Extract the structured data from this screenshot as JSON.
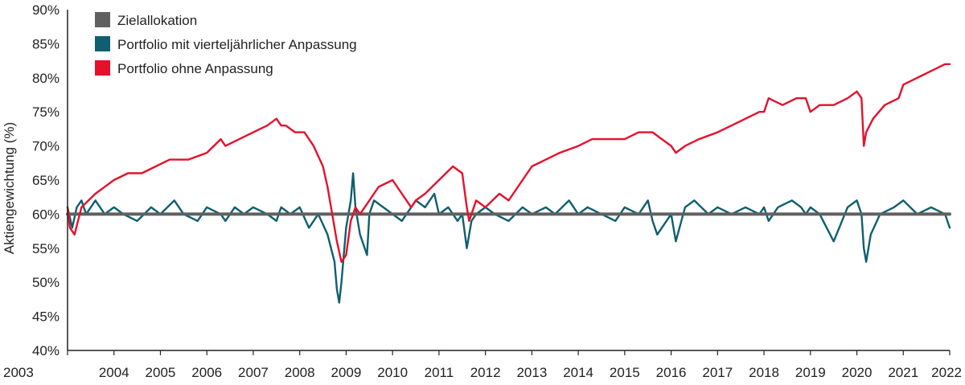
{
  "chart_data": {
    "type": "line",
    "title": "",
    "xlabel": "",
    "ylabel": "Aktiengewichtung (%)",
    "xlim": [
      2003,
      2022
    ],
    "ylim": [
      40,
      90
    ],
    "y_ticks": [
      40,
      45,
      50,
      55,
      60,
      65,
      70,
      75,
      80,
      85,
      90
    ],
    "y_tick_labels": [
      "40%",
      "45%",
      "50%",
      "55%",
      "60%",
      "65%",
      "70%",
      "75%",
      "80%",
      "85%",
      "90%"
    ],
    "x_ticks": [
      2003,
      2004,
      2005,
      2006,
      2007,
      2008,
      2009,
      2010,
      2011,
      2012,
      2013,
      2014,
      2015,
      2016,
      2017,
      2018,
      2019,
      2020,
      2021,
      2022
    ],
    "x_tick_labels": [
      "2003",
      "2004",
      "2005",
      "2006",
      "2007",
      "2008",
      "2009",
      "2010",
      "2011",
      "2012",
      "2013",
      "2014",
      "2015",
      "2016",
      "2017",
      "2018",
      "2019",
      "2020",
      "2021",
      "2022"
    ],
    "grid": false,
    "legend_position": "top-left",
    "series": [
      {
        "name": "Zielallokation",
        "color": "#606060",
        "x": [
          2003,
          2022
        ],
        "y": [
          60,
          60
        ]
      },
      {
        "name": "Portfolio mit vierteljährlicher Anpassung",
        "color": "#0f5f6e",
        "x": [
          2003.0,
          2003.1,
          2003.2,
          2003.3,
          2003.4,
          2003.5,
          2003.6,
          2003.8,
          2004.0,
          2004.2,
          2004.5,
          2004.8,
          2005.0,
          2005.3,
          2005.5,
          2005.8,
          2006.0,
          2006.3,
          2006.4,
          2006.6,
          2006.8,
          2007.0,
          2007.3,
          2007.5,
          2007.6,
          2007.8,
          2008.0,
          2008.2,
          2008.4,
          2008.6,
          2008.75,
          2008.8,
          2008.85,
          2008.9,
          2009.0,
          2009.1,
          2009.15,
          2009.2,
          2009.3,
          2009.4,
          2009.45,
          2009.5,
          2009.6,
          2009.8,
          2010.0,
          2010.2,
          2010.4,
          2010.5,
          2010.7,
          2010.9,
          2011.0,
          2011.2,
          2011.4,
          2011.5,
          2011.6,
          2011.65,
          2011.7,
          2011.8,
          2012.0,
          2012.2,
          2012.5,
          2012.8,
          2013.0,
          2013.3,
          2013.5,
          2013.8,
          2014.0,
          2014.2,
          2014.5,
          2014.8,
          2015.0,
          2015.3,
          2015.5,
          2015.6,
          2015.7,
          2015.9,
          2016.0,
          2016.1,
          2016.3,
          2016.5,
          2016.8,
          2017.0,
          2017.3,
          2017.6,
          2017.9,
          2018.0,
          2018.1,
          2018.3,
          2018.6,
          2018.8,
          2018.9,
          2019.0,
          2019.2,
          2019.5,
          2019.8,
          2020.0,
          2020.1,
          2020.15,
          2020.2,
          2020.3,
          2020.5,
          2020.8,
          2021.0,
          2021.3,
          2021.6,
          2021.9,
          2022.0
        ],
        "y": [
          61,
          58,
          61,
          62,
          60,
          61,
          62,
          60,
          61,
          60,
          59,
          61,
          60,
          62,
          60,
          59,
          61,
          60,
          59,
          61,
          60,
          61,
          60,
          59,
          61,
          60,
          61,
          58,
          60,
          57,
          53,
          49,
          47,
          50,
          58,
          62,
          66,
          61,
          57,
          55,
          54,
          60,
          62,
          61,
          60,
          59,
          61,
          62,
          61,
          63,
          60,
          61,
          59,
          60,
          55,
          57,
          59,
          60,
          61,
          60,
          59,
          61,
          60,
          61,
          60,
          62,
          60,
          61,
          60,
          59,
          61,
          60,
          62,
          59,
          57,
          59,
          60,
          56,
          61,
          62,
          60,
          61,
          60,
          61,
          60,
          61,
          59,
          61,
          62,
          61,
          60,
          61,
          60,
          56,
          61,
          62,
          60,
          55,
          53,
          57,
          60,
          61,
          62,
          60,
          61,
          60,
          58
        ]
      },
      {
        "name": "Portfolio ohne Anpassung",
        "color": "#e4112b",
        "x": [
          2003.0,
          2003.05,
          2003.15,
          2003.3,
          2003.6,
          2004.0,
          2004.3,
          2004.6,
          2004.9,
          2005.2,
          2005.6,
          2006.0,
          2006.3,
          2006.4,
          2006.7,
          2007.0,
          2007.3,
          2007.5,
          2007.6,
          2007.7,
          2007.9,
          2008.1,
          2008.3,
          2008.5,
          2008.6,
          2008.7,
          2008.8,
          2008.9,
          2009.0,
          2009.1,
          2009.2,
          2009.3,
          2009.5,
          2009.7,
          2010.0,
          2010.2,
          2010.4,
          2010.5,
          2010.7,
          2011.0,
          2011.3,
          2011.5,
          2011.6,
          2011.65,
          2011.8,
          2012.0,
          2012.3,
          2012.5,
          2012.8,
          2013.0,
          2013.3,
          2013.6,
          2014.0,
          2014.3,
          2014.6,
          2015.0,
          2015.3,
          2015.6,
          2015.8,
          2016.0,
          2016.1,
          2016.3,
          2016.6,
          2017.0,
          2017.3,
          2017.6,
          2017.9,
          2018.0,
          2018.1,
          2018.4,
          2018.7,
          2018.9,
          2019.0,
          2019.2,
          2019.5,
          2019.8,
          2020.0,
          2020.1,
          2020.15,
          2020.2,
          2020.35,
          2020.6,
          2020.9,
          2021.0,
          2021.3,
          2021.6,
          2021.9,
          2022.0
        ],
        "y": [
          61,
          58,
          57,
          61,
          63,
          65,
          66,
          66,
          67,
          68,
          68,
          69,
          71,
          70,
          71,
          72,
          73,
          74,
          73,
          73,
          72,
          72,
          70,
          67,
          64,
          60,
          56,
          53,
          54,
          59,
          61,
          60,
          62,
          64,
          65,
          63,
          61,
          62,
          63,
          65,
          67,
          66,
          61,
          59,
          62,
          61,
          63,
          62,
          65,
          67,
          68,
          69,
          70,
          71,
          71,
          71,
          72,
          72,
          71,
          70,
          69,
          70,
          71,
          72,
          73,
          74,
          75,
          75,
          77,
          76,
          77,
          77,
          75,
          76,
          76,
          77,
          78,
          77,
          70,
          72,
          74,
          76,
          77,
          79,
          80,
          81,
          82,
          82
        ]
      }
    ]
  }
}
